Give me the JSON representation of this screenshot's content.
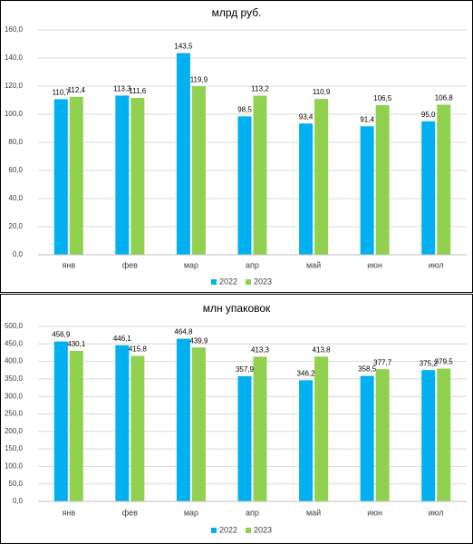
{
  "chart_data": [
    {
      "type": "bar",
      "title": "млрд руб.",
      "categories": [
        "янв",
        "фев",
        "мар",
        "апр",
        "май",
        "июн",
        "июл"
      ],
      "series": [
        {
          "name": "2022",
          "color": "#00b0f0",
          "values": [
            110.7,
            113.3,
            143.5,
            98.5,
            93.4,
            91.4,
            95.0
          ],
          "value_labels": [
            "110,7",
            "113,3",
            "143,5",
            "98,5",
            "93,4",
            "91,4",
            "95,0"
          ]
        },
        {
          "name": "2023",
          "color": "#92d050",
          "values": [
            112.4,
            111.6,
            119.9,
            113.2,
            110.9,
            106.5,
            106.8
          ],
          "value_labels": [
            "112,4",
            "111,6",
            "119,9",
            "113,2",
            "110,9",
            "106,5",
            "106,8"
          ]
        }
      ],
      "ylim": [
        0,
        160
      ],
      "yticks": [
        {
          "value": 0,
          "label": "0,0"
        },
        {
          "value": 20,
          "label": "20,0"
        },
        {
          "value": 40,
          "label": "40,0"
        },
        {
          "value": 60,
          "label": "60,0"
        },
        {
          "value": 80,
          "label": "80,0"
        },
        {
          "value": 100,
          "label": "100,0"
        },
        {
          "value": 120,
          "label": "120,0"
        },
        {
          "value": 140,
          "label": "140,0"
        },
        {
          "value": 160,
          "label": "160,0"
        }
      ],
      "grid": true,
      "legend": "bottom"
    },
    {
      "type": "bar",
      "title": "млн упаковок",
      "categories": [
        "янв",
        "фев",
        "мар",
        "апр",
        "май",
        "июн",
        "июл"
      ],
      "series": [
        {
          "name": "2022",
          "color": "#00b0f0",
          "values": [
            456.9,
            446.1,
            464.8,
            357.9,
            346.2,
            358.5,
            375.2
          ],
          "value_labels": [
            "456,9",
            "446,1",
            "464,8",
            "357,9",
            "346,2",
            "358,5",
            "375,2"
          ]
        },
        {
          "name": "2023",
          "color": "#92d050",
          "values": [
            430.1,
            415.8,
            439.9,
            413.3,
            413.8,
            377.7,
            379.5
          ],
          "value_labels": [
            "430,1",
            "415,8",
            "439,9",
            "413,3",
            "413,8",
            "377,7",
            "379,5"
          ]
        }
      ],
      "ylim": [
        0,
        500
      ],
      "yticks": [
        {
          "value": 0,
          "label": "0,0"
        },
        {
          "value": 50,
          "label": "50,0"
        },
        {
          "value": 100,
          "label": "100,0"
        },
        {
          "value": 150,
          "label": "150,0"
        },
        {
          "value": 200,
          "label": "200,0"
        },
        {
          "value": 250,
          "label": "250,0"
        },
        {
          "value": 300,
          "label": "300,0"
        },
        {
          "value": 350,
          "label": "350,0"
        },
        {
          "value": 400,
          "label": "400,0"
        },
        {
          "value": 450,
          "label": "450,0"
        },
        {
          "value": 500,
          "label": "500,0"
        }
      ],
      "grid": true,
      "legend": "bottom"
    }
  ]
}
